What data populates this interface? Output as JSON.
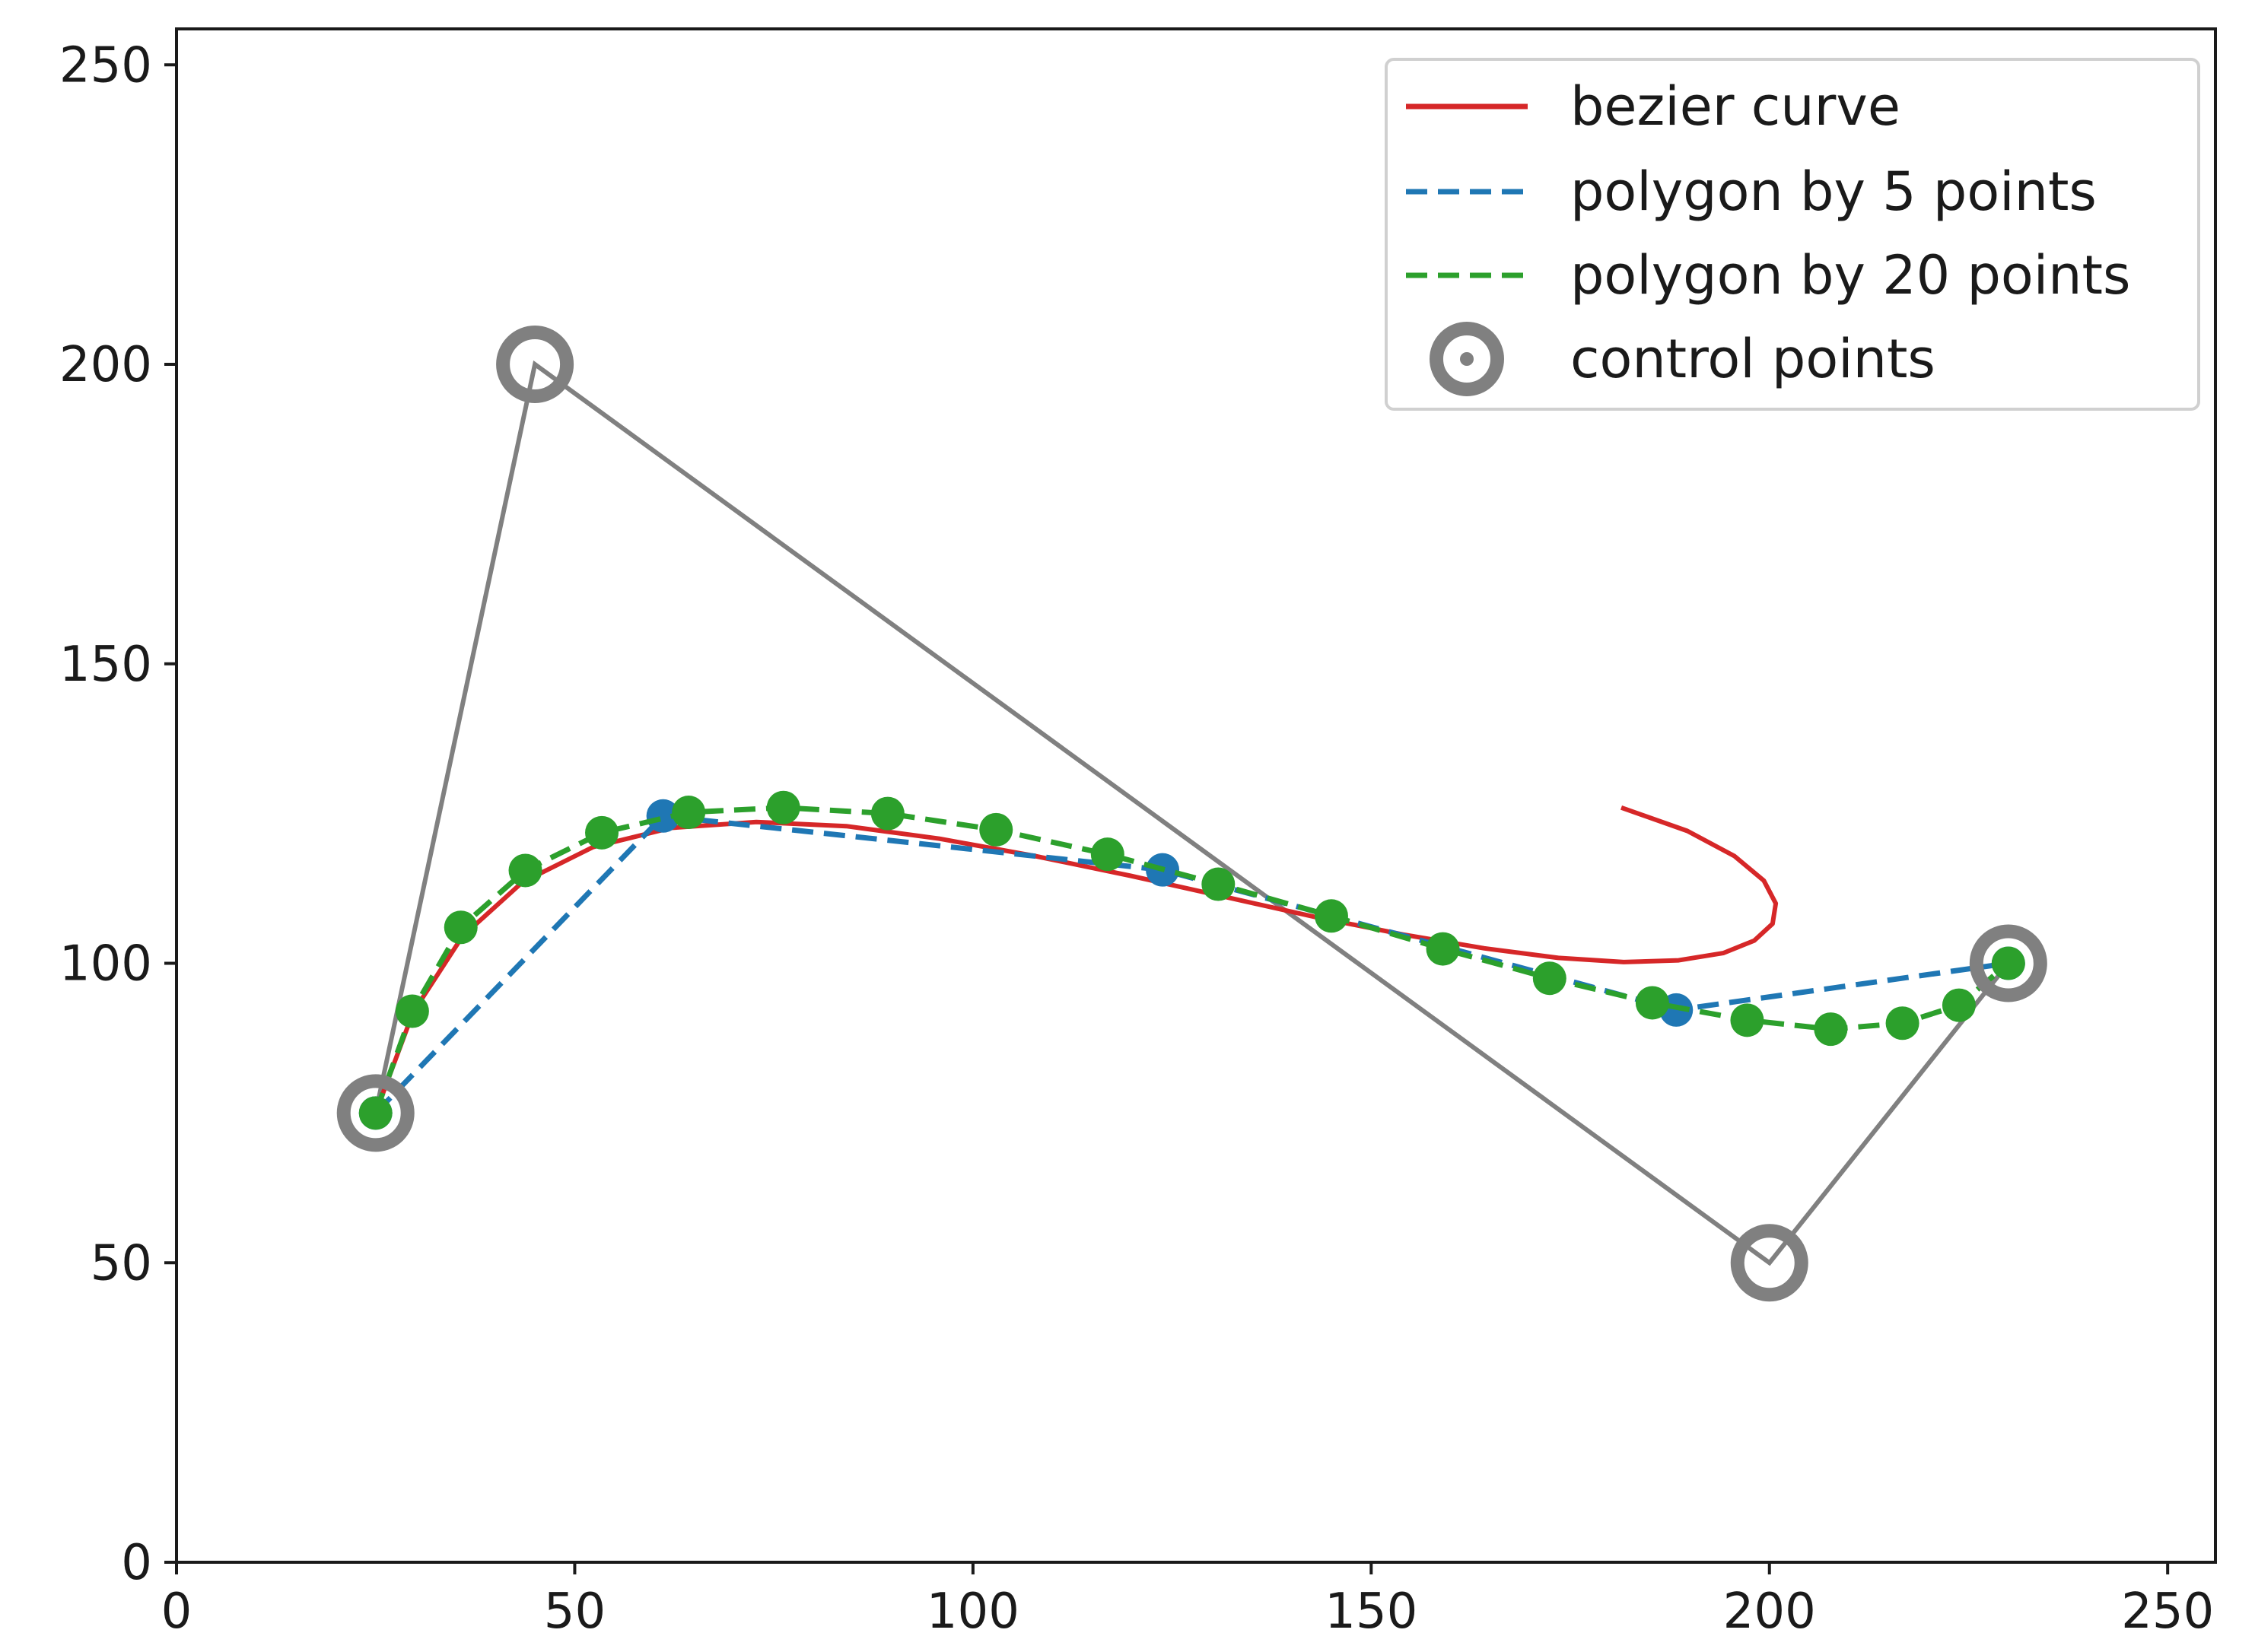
{
  "chart_data": {
    "type": "line",
    "title": "",
    "xlabel": "",
    "ylabel": "",
    "xlim": [
      0,
      256
    ],
    "ylim": [
      0,
      256
    ],
    "grid": false,
    "x_ticks": [
      0,
      50,
      100,
      150,
      200,
      250
    ],
    "x_tick_labels": [
      "0",
      "50",
      "100",
      "150",
      "200",
      "250"
    ],
    "y_ticks": [
      0,
      50,
      100,
      150,
      200,
      250
    ],
    "y_tick_labels": [
      "0",
      "50",
      "100",
      "150",
      "200",
      "250"
    ],
    "legend_position": "top-right",
    "series": [
      {
        "name": "bezier curve",
        "style": "solid",
        "color": "#d62728",
        "x": [
          25.0,
          29.7,
          35.9,
          43.4,
          52.3,
          62.1,
          72.8,
          84.1,
          95.8,
          107.8,
          119.8,
          131.6,
          143.1,
          154.0,
          164.2,
          173.5,
          181.7,
          188.6,
          194.2,
          198.1,
          200.4,
          200.8,
          199.3,
          195.6,
          189.7,
          181.4
        ],
        "y": [
          75.0,
          91.8,
          104.5,
          113.5,
          119.4,
          122.6,
          123.6,
          122.9,
          120.8,
          117.9,
          114.6,
          111.1,
          107.7,
          104.8,
          102.5,
          100.9,
          100.2,
          100.5,
          101.7,
          103.8,
          106.6,
          110.0,
          113.8,
          117.9,
          122.1,
          126.0
        ]
      },
      {
        "name": "polygon by 5 points",
        "style": "dashed",
        "color": "#1f77b4",
        "x": [
          25.0,
          61.1,
          123.8,
          188.3,
          230.0
        ],
        "y": [
          75.0,
          124.6,
          115.6,
          92.2,
          100.0
        ]
      },
      {
        "name": "polygon by 20 points",
        "style": "dashed",
        "color": "#2ca02c",
        "x": [
          25.0,
          29.6,
          35.7,
          43.8,
          53.4,
          64.3,
          76.2,
          89.3,
          102.9,
          116.9,
          130.8,
          145.0,
          159.0,
          172.4,
          185.3,
          197.2,
          207.7,
          216.7,
          223.8,
          230.0
        ],
        "y": [
          75.0,
          92.0,
          106.0,
          115.5,
          121.8,
          125.2,
          126.0,
          125.0,
          122.3,
          118.2,
          113.2,
          107.9,
          102.4,
          97.5,
          93.4,
          90.5,
          89.0,
          90.0,
          93.0,
          100.0
        ]
      },
      {
        "name": "control points",
        "style": "markers",
        "color": "#808080",
        "x": [
          25,
          45,
          200,
          230
        ],
        "y": [
          75,
          200,
          50,
          100
        ]
      }
    ]
  }
}
